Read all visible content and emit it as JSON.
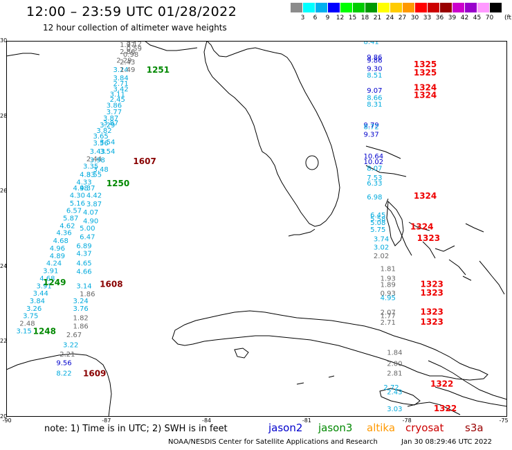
{
  "header": {
    "title": "12:00 – 23:59 UTC 01/28/2022",
    "subtitle": "12 hour collection of altimeter wave heights"
  },
  "colorbar": {
    "unit": "(ft)",
    "steps": [
      {
        "label": "",
        "color": "#8c8c8c"
      },
      {
        "label": "3",
        "color": "#00ffff"
      },
      {
        "label": "6",
        "color": "#00b0ee"
      },
      {
        "label": "9",
        "color": "#0000ff"
      },
      {
        "label": "12",
        "color": "#00ff00"
      },
      {
        "label": "15",
        "color": "#00cc00"
      },
      {
        "label": "18",
        "color": "#009900"
      },
      {
        "label": "21",
        "color": "#ffff00"
      },
      {
        "label": "24",
        "color": "#ffcc00"
      },
      {
        "label": "27",
        "color": "#ff9900"
      },
      {
        "label": "30",
        "color": "#ff0000"
      },
      {
        "label": "33",
        "color": "#cc0000"
      },
      {
        "label": "36",
        "color": "#990000"
      },
      {
        "label": "39",
        "color": "#cc00cc"
      },
      {
        "label": "42",
        "color": "#9900cc"
      },
      {
        "label": "45",
        "color": "#ff99ff"
      },
      {
        "label": "70",
        "color": "#000000"
      }
    ]
  },
  "axes": {
    "lat_ticks": [
      "30",
      "28",
      "26",
      "24",
      "22",
      "20"
    ],
    "lon_ticks": [
      "-90",
      "-87",
      "-84",
      "-81",
      "-78",
      "-75"
    ],
    "lon_range": [
      -90,
      -75
    ],
    "lat_range": [
      20,
      30
    ]
  },
  "footer": {
    "note": "note: 1) Time is in UTC; 2) SWH is in feet",
    "credit": "NOAA/NESDIS Center for Satellite Applications and Research",
    "timestamp": "Jan 30 08:29:46 UTC 2022"
  },
  "legend": [
    {
      "name": "jason2",
      "color": "#0000cc"
    },
    {
      "name": "jason3",
      "color": "#008800"
    },
    {
      "name": "altika",
      "color": "#ff9900"
    },
    {
      "name": "cryosat",
      "color": "#cc0000"
    },
    {
      "name": "s3a",
      "color": "#990000"
    }
  ],
  "colors": {
    "cyan": "#00aadd",
    "blue": "#0000cc",
    "gray": "#666666",
    "green": "#008800",
    "red": "#ee0000",
    "darkred": "#880000",
    "land_outline": "#000000"
  },
  "chart_data": {
    "type": "scatter",
    "xlabel": "",
    "ylabel": "",
    "xlim": [
      -90,
      -75
    ],
    "ylim": [
      20,
      30
    ],
    "swh_labels": [
      {
        "lon": -86.6,
        "lat": 29.83,
        "v": "1.97",
        "c": "gray"
      },
      {
        "lon": -86.4,
        "lat": 29.86,
        "v": "2.12",
        "c": "gray"
      },
      {
        "lon": -86.6,
        "lat": 29.65,
        "v": "2.86",
        "c": "gray"
      },
      {
        "lon": -86.4,
        "lat": 29.73,
        "v": "0.59",
        "c": "gray"
      },
      {
        "lon": -86.5,
        "lat": 29.58,
        "v": "0.98",
        "c": "gray"
      },
      {
        "lon": -86.7,
        "lat": 29.42,
        "v": "2.29",
        "c": "gray"
      },
      {
        "lon": -86.6,
        "lat": 29.37,
        "v": "2.43",
        "c": "gray"
      },
      {
        "lon": -86.8,
        "lat": 29.17,
        "v": "3.24",
        "c": "cyan"
      },
      {
        "lon": -86.6,
        "lat": 29.17,
        "v": "1.49",
        "c": "gray"
      },
      {
        "lon": -86.8,
        "lat": 28.95,
        "v": "3.84",
        "c": "cyan"
      },
      {
        "lon": -86.8,
        "lat": 28.8,
        "v": "2.71",
        "c": "cyan"
      },
      {
        "lon": -86.8,
        "lat": 28.66,
        "v": "3.42",
        "c": "cyan"
      },
      {
        "lon": -86.9,
        "lat": 28.52,
        "v": "3.11",
        "c": "cyan"
      },
      {
        "lon": -86.9,
        "lat": 28.38,
        "v": "2.45",
        "c": "cyan"
      },
      {
        "lon": -87.0,
        "lat": 28.22,
        "v": "3.86",
        "c": "cyan"
      },
      {
        "lon": -87.0,
        "lat": 28.05,
        "v": "3.77",
        "c": "cyan"
      },
      {
        "lon": -87.1,
        "lat": 27.88,
        "v": "3.87",
        "c": "cyan"
      },
      {
        "lon": -87.2,
        "lat": 27.7,
        "v": "3.29",
        "c": "cyan"
      },
      {
        "lon": -87.1,
        "lat": 27.75,
        "v": "3.87",
        "c": "cyan"
      },
      {
        "lon": -87.3,
        "lat": 27.55,
        "v": "3.82",
        "c": "cyan"
      },
      {
        "lon": -87.4,
        "lat": 27.4,
        "v": "3.65",
        "c": "cyan"
      },
      {
        "lon": -87.4,
        "lat": 27.22,
        "v": "3.56",
        "c": "cyan"
      },
      {
        "lon": -87.2,
        "lat": 27.25,
        "v": "3.54",
        "c": "cyan"
      },
      {
        "lon": -87.5,
        "lat": 27.0,
        "v": "3.43",
        "c": "cyan"
      },
      {
        "lon": -87.2,
        "lat": 27.0,
        "v": "3.54",
        "c": "cyan"
      },
      {
        "lon": -87.6,
        "lat": 26.8,
        "v": "2.44",
        "c": "gray"
      },
      {
        "lon": -87.5,
        "lat": 26.77,
        "v": "3.98",
        "c": "cyan"
      },
      {
        "lon": -87.7,
        "lat": 26.6,
        "v": "3.35",
        "c": "cyan"
      },
      {
        "lon": -87.4,
        "lat": 26.52,
        "v": "3.48",
        "c": "cyan"
      },
      {
        "lon": -87.8,
        "lat": 26.38,
        "v": "4.83",
        "c": "cyan"
      },
      {
        "lon": -87.6,
        "lat": 26.38,
        "v": "3.55",
        "c": "cyan"
      },
      {
        "lon": -87.9,
        "lat": 26.18,
        "v": "4.33",
        "c": "cyan"
      },
      {
        "lon": -88.0,
        "lat": 26.02,
        "v": "4.98",
        "c": "cyan"
      },
      {
        "lon": -87.8,
        "lat": 26.02,
        "v": "4.37",
        "c": "cyan"
      },
      {
        "lon": -88.1,
        "lat": 25.83,
        "v": "4.30",
        "c": "cyan"
      },
      {
        "lon": -87.6,
        "lat": 25.83,
        "v": "4.42",
        "c": "cyan"
      },
      {
        "lon": -88.1,
        "lat": 25.62,
        "v": "5.16",
        "c": "cyan"
      },
      {
        "lon": -87.6,
        "lat": 25.6,
        "v": "3.87",
        "c": "cyan"
      },
      {
        "lon": -88.2,
        "lat": 25.42,
        "v": "6.57",
        "c": "cyan"
      },
      {
        "lon": -87.7,
        "lat": 25.38,
        "v": "4.07",
        "c": "cyan"
      },
      {
        "lon": -88.3,
        "lat": 25.22,
        "v": "5.87",
        "c": "cyan"
      },
      {
        "lon": -87.7,
        "lat": 25.15,
        "v": "4.90",
        "c": "cyan"
      },
      {
        "lon": -88.4,
        "lat": 25.02,
        "v": "4.62",
        "c": "cyan"
      },
      {
        "lon": -87.8,
        "lat": 24.95,
        "v": "5.00",
        "c": "cyan"
      },
      {
        "lon": -88.5,
        "lat": 24.83,
        "v": "4.36",
        "c": "cyan"
      },
      {
        "lon": -87.8,
        "lat": 24.72,
        "v": "6.47",
        "c": "cyan"
      },
      {
        "lon": -88.6,
        "lat": 24.62,
        "v": "4.68",
        "c": "cyan"
      },
      {
        "lon": -88.7,
        "lat": 24.42,
        "v": "4.96",
        "c": "cyan"
      },
      {
        "lon": -87.9,
        "lat": 24.48,
        "v": "6.89",
        "c": "cyan"
      },
      {
        "lon": -88.7,
        "lat": 24.22,
        "v": "4.89",
        "c": "cyan"
      },
      {
        "lon": -87.9,
        "lat": 24.28,
        "v": "4.37",
        "c": "cyan"
      },
      {
        "lon": -88.8,
        "lat": 24.02,
        "v": "4.24",
        "c": "cyan"
      },
      {
        "lon": -87.9,
        "lat": 24.02,
        "v": "4.65",
        "c": "cyan"
      },
      {
        "lon": -88.9,
        "lat": 23.82,
        "v": "3.91",
        "c": "cyan"
      },
      {
        "lon": -87.9,
        "lat": 23.8,
        "v": "4.66",
        "c": "cyan"
      },
      {
        "lon": -89.0,
        "lat": 23.62,
        "v": "4.68",
        "c": "cyan"
      },
      {
        "lon": -89.1,
        "lat": 23.42,
        "v": "3.91",
        "c": "cyan"
      },
      {
        "lon": -87.9,
        "lat": 23.42,
        "v": "3.14",
        "c": "cyan"
      },
      {
        "lon": -89.2,
        "lat": 23.22,
        "v": "3.44",
        "c": "cyan"
      },
      {
        "lon": -87.8,
        "lat": 23.2,
        "v": "1.86",
        "c": "gray"
      },
      {
        "lon": -89.3,
        "lat": 23.02,
        "v": "3.84",
        "c": "cyan"
      },
      {
        "lon": -88.0,
        "lat": 23.02,
        "v": "3.24",
        "c": "cyan"
      },
      {
        "lon": -89.4,
        "lat": 22.82,
        "v": "3.26",
        "c": "cyan"
      },
      {
        "lon": -88.0,
        "lat": 22.82,
        "v": "3.76",
        "c": "cyan"
      },
      {
        "lon": -89.5,
        "lat": 22.62,
        "v": "3.75",
        "c": "cyan"
      },
      {
        "lon": -88.0,
        "lat": 22.57,
        "v": "1.82",
        "c": "gray"
      },
      {
        "lon": -89.6,
        "lat": 22.42,
        "v": "2.48",
        "c": "gray"
      },
      {
        "lon": -88.0,
        "lat": 22.35,
        "v": "1.86",
        "c": "gray"
      },
      {
        "lon": -89.7,
        "lat": 22.22,
        "v": "3.15",
        "c": "cyan"
      },
      {
        "lon": -88.2,
        "lat": 22.12,
        "v": "2.67",
        "c": "gray"
      },
      {
        "lon": -88.3,
        "lat": 21.85,
        "v": "3.22",
        "c": "cyan"
      },
      {
        "lon": -88.4,
        "lat": 21.6,
        "v": "2.21",
        "c": "gray"
      },
      {
        "lon": -88.5,
        "lat": 21.37,
        "v": "9.56",
        "c": "blue"
      },
      {
        "lon": -88.5,
        "lat": 21.1,
        "v": "8.22",
        "c": "cyan"
      },
      {
        "lon": -79.3,
        "lat": 29.92,
        "v": "8.41",
        "c": "cyan"
      },
      {
        "lon": -79.2,
        "lat": 29.5,
        "v": "9.86",
        "c": "blue"
      },
      {
        "lon": -79.2,
        "lat": 29.42,
        "v": "9.86",
        "c": "blue"
      },
      {
        "lon": -79.2,
        "lat": 29.2,
        "v": "9.30",
        "c": "blue"
      },
      {
        "lon": -79.2,
        "lat": 29.02,
        "v": "8.51",
        "c": "cyan"
      },
      {
        "lon": -79.2,
        "lat": 28.62,
        "v": "9.07",
        "c": "blue"
      },
      {
        "lon": -79.2,
        "lat": 28.43,
        "v": "8.66",
        "c": "cyan"
      },
      {
        "lon": -79.2,
        "lat": 28.25,
        "v": "8.31",
        "c": "cyan"
      },
      {
        "lon": -79.3,
        "lat": 27.7,
        "v": "9.79",
        "c": "blue"
      },
      {
        "lon": -79.3,
        "lat": 27.65,
        "v": "8.72",
        "c": "cyan"
      },
      {
        "lon": -79.3,
        "lat": 27.45,
        "v": "9.37",
        "c": "blue"
      },
      {
        "lon": -79.3,
        "lat": 26.87,
        "v": "10.64",
        "c": "blue"
      },
      {
        "lon": -79.3,
        "lat": 26.72,
        "v": "10.02",
        "c": "blue"
      },
      {
        "lon": -79.2,
        "lat": 26.55,
        "v": "8.07",
        "c": "cyan"
      },
      {
        "lon": -79.2,
        "lat": 26.3,
        "v": "7.53",
        "c": "cyan"
      },
      {
        "lon": -79.2,
        "lat": 26.15,
        "v": "6.33",
        "c": "cyan"
      },
      {
        "lon": -79.2,
        "lat": 25.78,
        "v": "6.98",
        "c": "cyan"
      },
      {
        "lon": -79.1,
        "lat": 25.3,
        "v": "6.45",
        "c": "cyan"
      },
      {
        "lon": -79.1,
        "lat": 25.2,
        "v": "5.58",
        "c": "cyan"
      },
      {
        "lon": -79.1,
        "lat": 25.1,
        "v": "5.08",
        "c": "cyan"
      },
      {
        "lon": -79.1,
        "lat": 24.92,
        "v": "5.75",
        "c": "cyan"
      },
      {
        "lon": -79.0,
        "lat": 24.67,
        "v": "3.74",
        "c": "cyan"
      },
      {
        "lon": -79.0,
        "lat": 24.45,
        "v": "3.02",
        "c": "cyan"
      },
      {
        "lon": -79.0,
        "lat": 24.22,
        "v": "2.02",
        "c": "gray"
      },
      {
        "lon": -78.8,
        "lat": 23.88,
        "v": "1.81",
        "c": "gray"
      },
      {
        "lon": -78.8,
        "lat": 23.62,
        "v": "1.93",
        "c": "gray"
      },
      {
        "lon": -78.8,
        "lat": 23.45,
        "v": "1.89",
        "c": "gray"
      },
      {
        "lon": -78.8,
        "lat": 23.22,
        "v": "0.93",
        "c": "gray"
      },
      {
        "lon": -78.8,
        "lat": 23.1,
        "v": "4.95",
        "c": "cyan"
      },
      {
        "lon": -78.8,
        "lat": 22.72,
        "v": "2.07",
        "c": "gray"
      },
      {
        "lon": -78.8,
        "lat": 22.62,
        "v": "1.77",
        "c": "gray"
      },
      {
        "lon": -78.8,
        "lat": 22.45,
        "v": "2.71",
        "c": "gray"
      },
      {
        "lon": -78.6,
        "lat": 21.65,
        "v": "1.84",
        "c": "gray"
      },
      {
        "lon": -78.6,
        "lat": 21.35,
        "v": "2.00",
        "c": "gray"
      },
      {
        "lon": -78.6,
        "lat": 21.1,
        "v": "2.81",
        "c": "gray"
      },
      {
        "lon": -78.7,
        "lat": 20.72,
        "v": "2.72",
        "c": "cyan"
      },
      {
        "lon": -78.6,
        "lat": 20.6,
        "v": "2.43",
        "c": "cyan"
      },
      {
        "lon": -78.6,
        "lat": 20.15,
        "v": "3.03",
        "c": "cyan"
      }
    ],
    "pass_labels": [
      {
        "lon": -85.8,
        "lat": 29.15,
        "v": "1251",
        "c": "green"
      },
      {
        "lon": -86.2,
        "lat": 26.72,
        "v": "1607",
        "c": "darkred"
      },
      {
        "lon": -87.0,
        "lat": 26.13,
        "v": "1250",
        "c": "green"
      },
      {
        "lon": -88.9,
        "lat": 23.5,
        "v": "1249",
        "c": "green"
      },
      {
        "lon": -87.2,
        "lat": 23.45,
        "v": "1608",
        "c": "darkred"
      },
      {
        "lon": -89.2,
        "lat": 22.2,
        "v": "1248",
        "c": "green"
      },
      {
        "lon": -87.7,
        "lat": 21.08,
        "v": "1609",
        "c": "darkred"
      },
      {
        "lon": -77.8,
        "lat": 29.3,
        "v": "1325",
        "c": "red"
      },
      {
        "lon": -77.8,
        "lat": 29.08,
        "v": "1325",
        "c": "red"
      },
      {
        "lon": -77.8,
        "lat": 28.68,
        "v": "1324",
        "c": "red"
      },
      {
        "lon": -77.8,
        "lat": 28.48,
        "v": "1324",
        "c": "red"
      },
      {
        "lon": -77.8,
        "lat": 25.8,
        "v": "1324",
        "c": "red"
      },
      {
        "lon": -77.9,
        "lat": 24.98,
        "v": "1324",
        "c": "red"
      },
      {
        "lon": -77.7,
        "lat": 24.68,
        "v": "1323",
        "c": "red"
      },
      {
        "lon": -77.6,
        "lat": 23.45,
        "v": "1323",
        "c": "red"
      },
      {
        "lon": -77.6,
        "lat": 23.22,
        "v": "1323",
        "c": "red"
      },
      {
        "lon": -77.6,
        "lat": 22.72,
        "v": "1323",
        "c": "red"
      },
      {
        "lon": -77.6,
        "lat": 22.45,
        "v": "1323",
        "c": "red"
      },
      {
        "lon": -77.3,
        "lat": 20.8,
        "v": "1322",
        "c": "red"
      },
      {
        "lon": -77.2,
        "lat": 20.15,
        "v": "1322",
        "c": "red"
      }
    ]
  }
}
